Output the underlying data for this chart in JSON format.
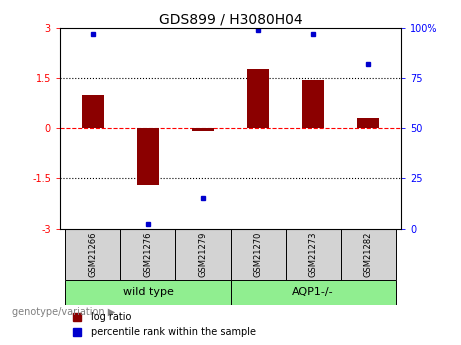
{
  "title": "GDS899 / H3080H04",
  "samples": [
    "GSM21266",
    "GSM21276",
    "GSM21279",
    "GSM21270",
    "GSM21273",
    "GSM21282"
  ],
  "log_ratio": [
    1.0,
    -1.7,
    -0.1,
    1.75,
    1.45,
    0.3
  ],
  "percentile_rank": [
    97,
    2,
    15,
    99,
    97,
    82
  ],
  "group1_label": "wild type",
  "group2_label": "AQP1-/-",
  "group1_color": "#90EE90",
  "group2_color": "#90EE90",
  "bar_color": "#8B0000",
  "dot_color": "#0000CD",
  "ylim_left": [
    -3,
    3
  ],
  "ylim_right": [
    0,
    100
  ],
  "yticks_left": [
    -3,
    -1.5,
    0,
    1.5,
    3
  ],
  "yticks_right": [
    0,
    25,
    50,
    75,
    100
  ],
  "hline_positions": [
    -1.5,
    0,
    1.5
  ],
  "hline_styles": [
    "dotted",
    "dashed",
    "dotted"
  ],
  "hline_colors": [
    "black",
    "red",
    "black"
  ],
  "bar_width": 0.4,
  "legend_log_ratio": "log ratio",
  "legend_percentile": "percentile rank within the sample",
  "genotype_label": "genotype/variation",
  "title_fontsize": 10,
  "tick_fontsize": 7,
  "sample_fontsize": 6,
  "group_label_fontsize": 8,
  "legend_fontsize": 7,
  "cell_color": "#D3D3D3",
  "n_group1": 3,
  "n_group2": 3
}
